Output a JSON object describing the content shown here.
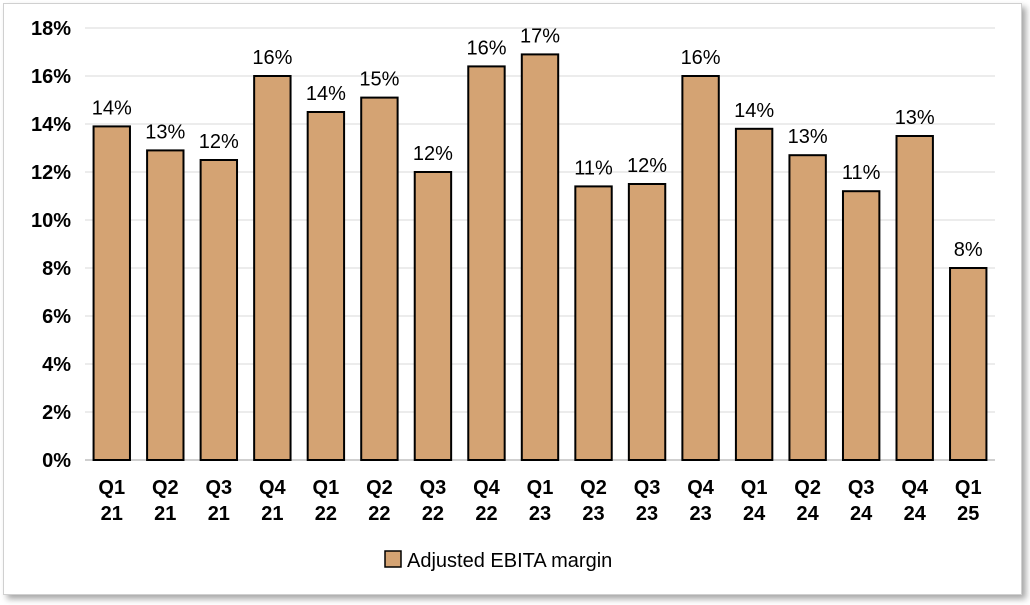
{
  "chart_data": {
    "type": "bar",
    "categories": [
      "Q1 21",
      "Q2 21",
      "Q3 21",
      "Q4 21",
      "Q1 22",
      "Q2 22",
      "Q3 22",
      "Q4 22",
      "Q1 23",
      "Q2 23",
      "Q3 23",
      "Q4 23",
      "Q1 24",
      "Q2 24",
      "Q3 24",
      "Q4 24",
      "Q1 25"
    ],
    "series": [
      {
        "name": "Adjusted EBITA margin",
        "values": [
          13.9,
          12.9,
          12.5,
          16.0,
          14.5,
          15.1,
          12.0,
          16.4,
          16.9,
          11.4,
          11.5,
          16.0,
          13.8,
          12.7,
          11.2,
          13.5,
          8.0
        ],
        "labels": [
          "14%",
          "13%",
          "12%",
          "16%",
          "14%",
          "15%",
          "12%",
          "16%",
          "17%",
          "11%",
          "12%",
          "16%",
          "14%",
          "13%",
          "11%",
          "13%",
          "8%"
        ],
        "color": "#D4A373"
      }
    ],
    "ylim": [
      0,
      18
    ],
    "yticks": [
      0,
      2,
      4,
      6,
      8,
      10,
      12,
      14,
      16,
      18
    ],
    "ytick_labels": [
      "0%",
      "2%",
      "4%",
      "6%",
      "8%",
      "10%",
      "12%",
      "14%",
      "16%",
      "18%"
    ],
    "grid": true,
    "legend": "bottom-center",
    "colors": {
      "bar": "#D4A373",
      "bar_edge": "#000000",
      "grid": "#d9d9d9"
    }
  }
}
